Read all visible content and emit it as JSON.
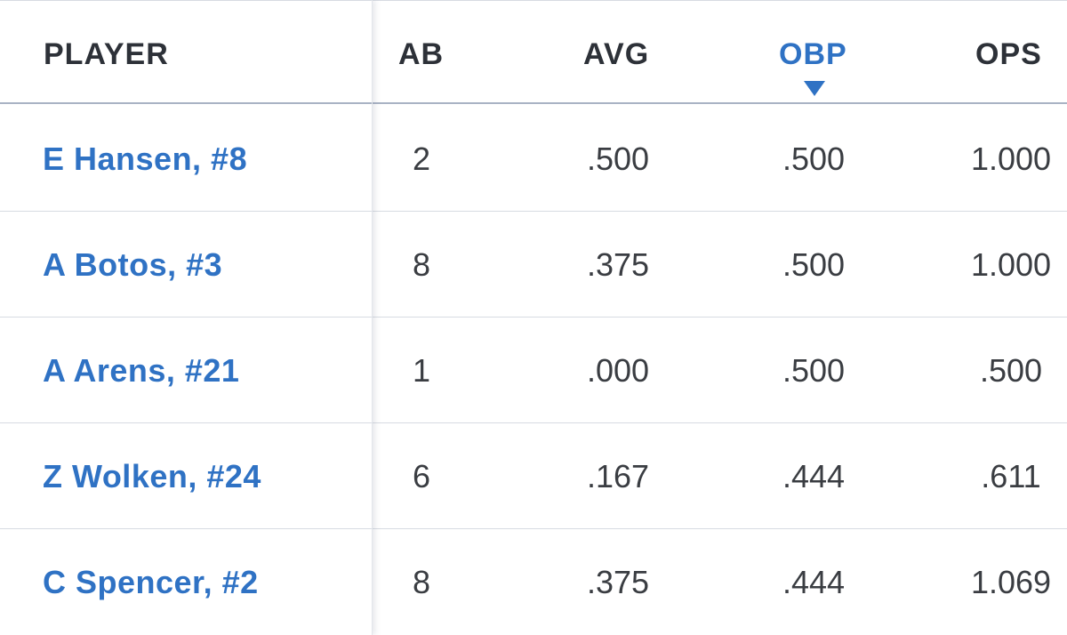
{
  "table": {
    "columns": {
      "player": "PLAYER",
      "ab": "AB",
      "avg": "AVG",
      "obp": "OBP",
      "ops": "OPS"
    },
    "sorted_column": "OBP",
    "sort_direction": "descending",
    "accent_color": "#2f72c4",
    "rows": [
      {
        "player": "E Hansen, #8",
        "ab": "2",
        "avg": ".500",
        "obp": ".500",
        "ops": "1.000"
      },
      {
        "player": "A Botos, #3",
        "ab": "8",
        "avg": ".375",
        "obp": ".500",
        "ops": "1.000"
      },
      {
        "player": "A Arens, #21",
        "ab": "1",
        "avg": ".000",
        "obp": ".500",
        "ops": ".500"
      },
      {
        "player": "Z Wolken, #24",
        "ab": "6",
        "avg": ".167",
        "obp": ".444",
        "ops": ".611"
      },
      {
        "player": "C Spencer, #2",
        "ab": "8",
        "avg": ".375",
        "obp": ".444",
        "ops": "1.069"
      }
    ]
  }
}
